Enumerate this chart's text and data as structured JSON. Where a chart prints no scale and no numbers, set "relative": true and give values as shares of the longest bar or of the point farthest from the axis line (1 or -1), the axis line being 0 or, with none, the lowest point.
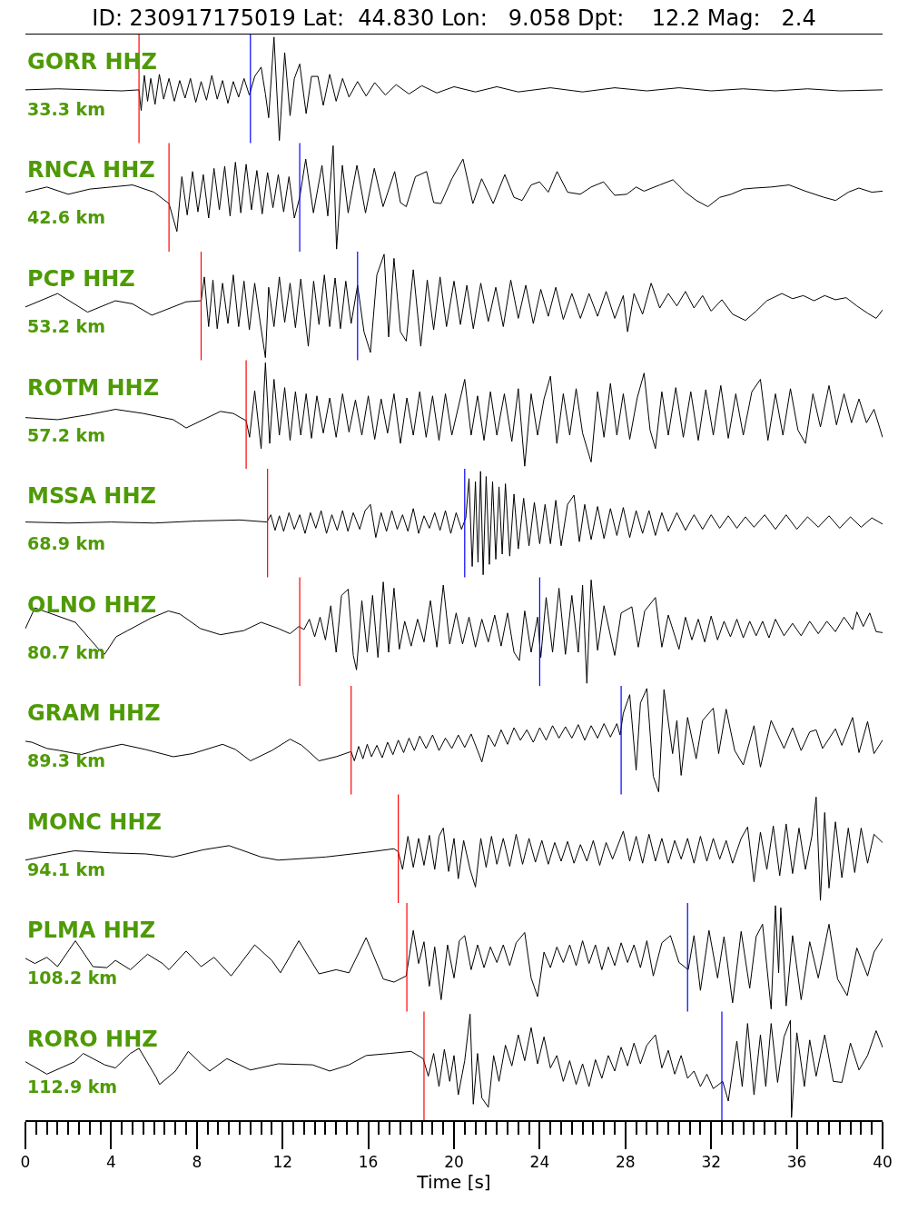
{
  "chart_data": [
    {
      "type": "line",
      "title": "ID: 230917175019 Lat:  44.830 Lon:   9.058 Dpt:    12.2 Mag:   2.4",
      "annotations": [
        "GORR HHZ",
        "33.3 km"
      ],
      "relative": true,
      "xlim": [
        0,
        40
      ],
      "tick_labels": false,
      "color": "#000000",
      "ref_lines": [
        {
          "axis": "x",
          "value": 5.3,
          "color": "#ff0000"
        },
        {
          "axis": "x",
          "value": 10.5,
          "color": "#0000ff"
        }
      ],
      "x": [
        0,
        1.5,
        3,
        4.5,
        5.3,
        5.4,
        5.55,
        5.7,
        5.85,
        6.05,
        6.25,
        6.45,
        6.7,
        6.95,
        7.2,
        7.45,
        7.7,
        7.95,
        8.2,
        8.45,
        8.7,
        8.95,
        9.2,
        9.45,
        9.7,
        9.95,
        10.2,
        10.45,
        10.7,
        11.0,
        11.2,
        11.35,
        11.6,
        11.85,
        12.1,
        12.35,
        12.55,
        12.8,
        13.1,
        13.35,
        13.65,
        13.9,
        14.2,
        14.5,
        14.8,
        15.1,
        15.5,
        15.9,
        16.3,
        16.8,
        17.3,
        17.9,
        18.5,
        19.2,
        20,
        21,
        22,
        23,
        24.5,
        26,
        27.5,
        29,
        30.5,
        32,
        33.5,
        35,
        36.5,
        38,
        40
      ],
      "values": [
        0.49,
        0.5,
        0.49,
        0.48,
        0.49,
        0.29,
        0.63,
        0.38,
        0.6,
        0.35,
        0.64,
        0.4,
        0.6,
        0.38,
        0.58,
        0.41,
        0.6,
        0.37,
        0.57,
        0.39,
        0.63,
        0.4,
        0.58,
        0.36,
        0.57,
        0.42,
        0.6,
        0.44,
        0.62,
        0.71,
        0.45,
        0.22,
        1.0,
        0.0,
        0.85,
        0.24,
        0.6,
        0.74,
        0.26,
        0.62,
        0.62,
        0.34,
        0.64,
        0.38,
        0.6,
        0.42,
        0.57,
        0.43,
        0.56,
        0.44,
        0.54,
        0.45,
        0.53,
        0.46,
        0.52,
        0.47,
        0.52,
        0.47,
        0.51,
        0.47,
        0.51,
        0.48,
        0.51,
        0.48,
        0.5,
        0.48,
        0.5,
        0.48,
        0.49
      ]
    },
    {
      "type": "line",
      "annotations": [
        "RNCA HHZ",
        "42.6 km"
      ],
      "relative": true,
      "xlim": [
        0,
        40
      ],
      "tick_labels": false,
      "color": "#000000",
      "ref_lines": [
        {
          "axis": "x",
          "value": 6.7,
          "color": "#ff0000"
        },
        {
          "axis": "x",
          "value": 12.8,
          "color": "#0000ff"
        }
      ],
      "x": [
        0,
        1,
        2,
        3,
        4,
        5,
        6,
        6.7,
        7.07,
        7.3,
        7.55,
        7.8,
        8.05,
        8.3,
        8.55,
        8.8,
        9.05,
        9.3,
        9.55,
        9.8,
        10.05,
        10.3,
        10.55,
        10.8,
        11.05,
        11.3,
        11.55,
        11.8,
        12.05,
        12.3,
        12.55,
        12.8,
        13.08,
        13.44,
        13.84,
        14.11,
        14.36,
        14.52,
        14.79,
        15.06,
        15.47,
        15.87,
        16.28,
        16.69,
        17.23,
        17.5,
        17.77,
        18.2,
        18.72,
        19.05,
        19.39,
        19.9,
        20.42,
        20.88,
        21.29,
        21.83,
        22.37,
        22.8,
        23.18,
        23.6,
        23.99,
        24.4,
        24.81,
        25.3,
        25.89,
        26.4,
        26.98,
        27.5,
        28.06,
        28.5,
        28.87,
        29.6,
        30.22,
        30.8,
        31.31,
        31.85,
        32.4,
        32.93,
        33.5,
        34.02,
        34.8,
        35.64,
        36.4,
        37.27,
        37.81,
        38.4,
        38.89,
        39.5,
        40
      ],
      "values": [
        0.55,
        0.6,
        0.53,
        0.58,
        0.6,
        0.62,
        0.55,
        0.44,
        0.17,
        0.7,
        0.33,
        0.75,
        0.36,
        0.72,
        0.3,
        0.78,
        0.38,
        0.8,
        0.32,
        0.84,
        0.35,
        0.82,
        0.38,
        0.76,
        0.34,
        0.74,
        0.4,
        0.72,
        0.36,
        0.7,
        0.3,
        0.5,
        0.87,
        0.35,
        0.81,
        0.32,
        1.0,
        0.0,
        0.81,
        0.35,
        0.81,
        0.35,
        0.78,
        0.41,
        0.75,
        0.45,
        0.41,
        0.7,
        0.75,
        0.45,
        0.44,
        0.68,
        0.87,
        0.44,
        0.68,
        0.44,
        0.72,
        0.5,
        0.47,
        0.62,
        0.65,
        0.55,
        0.75,
        0.55,
        0.53,
        0.6,
        0.65,
        0.52,
        0.53,
        0.6,
        0.56,
        0.62,
        0.67,
        0.55,
        0.47,
        0.41,
        0.5,
        0.53,
        0.58,
        0.59,
        0.6,
        0.62,
        0.56,
        0.5,
        0.47,
        0.55,
        0.59,
        0.55,
        0.56
      ]
    },
    {
      "type": "line",
      "annotations": [
        "PCP HHZ",
        "53.2 km"
      ],
      "relative": true,
      "xlim": [
        0,
        40
      ],
      "tick_labels": false,
      "color": "#000000",
      "ref_lines": [
        {
          "axis": "x",
          "value": 8.2,
          "color": "#ff0000"
        },
        {
          "axis": "x",
          "value": 15.5,
          "color": "#0000ff"
        }
      ],
      "x": [
        0,
        1.5,
        2.9,
        4.2,
        5.0,
        5.9,
        7.5,
        8.2,
        8.35,
        8.55,
        8.75,
        8.95,
        9.2,
        9.45,
        9.7,
        9.95,
        10.2,
        10.45,
        10.7,
        10.95,
        11.2,
        11.35,
        11.6,
        11.85,
        12.1,
        12.35,
        12.6,
        12.85,
        13.2,
        13.45,
        13.7,
        13.95,
        14.2,
        14.45,
        14.7,
        14.95,
        15.2,
        15.5,
        15.8,
        16.1,
        16.4,
        16.74,
        16.95,
        17.2,
        17.5,
        17.77,
        18.1,
        18.45,
        18.75,
        19.05,
        19.35,
        19.65,
        20.0,
        20.3,
        20.6,
        20.9,
        21.25,
        21.6,
        21.95,
        22.3,
        22.65,
        23.0,
        23.35,
        23.7,
        24.05,
        24.4,
        24.75,
        25.1,
        25.5,
        25.9,
        26.3,
        26.7,
        27.1,
        27.5,
        27.9,
        28.1,
        28.4,
        28.8,
        29.2,
        29.6,
        30.0,
        30.4,
        30.8,
        31.2,
        31.6,
        32.0,
        32.5,
        33.0,
        33.6,
        34.1,
        34.6,
        35.3,
        35.8,
        36.3,
        36.8,
        37.3,
        37.8,
        38.3,
        38.8,
        39.3,
        39.7,
        40
      ],
      "values": [
        0.49,
        0.62,
        0.44,
        0.55,
        0.52,
        0.41,
        0.54,
        0.55,
        0.78,
        0.3,
        0.75,
        0.28,
        0.72,
        0.33,
        0.8,
        0.3,
        0.74,
        0.27,
        0.72,
        0.35,
        0.0,
        0.68,
        0.3,
        0.78,
        0.34,
        0.72,
        0.29,
        0.76,
        0.11,
        0.74,
        0.32,
        0.8,
        0.3,
        0.77,
        0.28,
        0.74,
        0.33,
        0.7,
        0.25,
        0.05,
        0.8,
        1.0,
        0.2,
        0.96,
        0.25,
        0.16,
        0.85,
        0.11,
        0.75,
        0.27,
        0.78,
        0.3,
        0.74,
        0.32,
        0.7,
        0.28,
        0.72,
        0.35,
        0.68,
        0.3,
        0.75,
        0.38,
        0.7,
        0.33,
        0.66,
        0.4,
        0.68,
        0.37,
        0.62,
        0.38,
        0.62,
        0.4,
        0.64,
        0.38,
        0.6,
        0.25,
        0.62,
        0.42,
        0.72,
        0.48,
        0.62,
        0.5,
        0.64,
        0.48,
        0.6,
        0.45,
        0.56,
        0.42,
        0.36,
        0.45,
        0.55,
        0.62,
        0.57,
        0.6,
        0.55,
        0.6,
        0.56,
        0.58,
        0.5,
        0.43,
        0.38,
        0.46
      ]
    },
    {
      "type": "line",
      "annotations": [
        "ROTM HHZ",
        "57.2 km"
      ],
      "relative": true,
      "xlim": [
        0,
        40
      ],
      "tick_labels": false,
      "color": "#000000",
      "ref_lines": [
        {
          "axis": "x",
          "value": 10.3,
          "color": "#ff0000"
        }
      ],
      "x": [
        0,
        1.5,
        3,
        4.2,
        5.5,
        6.9,
        7.5,
        8.3,
        9.1,
        9.7,
        10.3,
        10.46,
        10.7,
        11.0,
        11.2,
        11.4,
        11.6,
        11.85,
        12.1,
        12.35,
        12.6,
        12.85,
        13.1,
        13.35,
        13.6,
        13.9,
        14.2,
        14.5,
        14.8,
        15.1,
        15.4,
        15.7,
        16.0,
        16.3,
        16.6,
        16.9,
        17.2,
        17.5,
        17.8,
        18.1,
        18.4,
        18.7,
        19.0,
        19.3,
        19.6,
        19.9,
        20.5,
        20.8,
        21.1,
        21.4,
        21.7,
        22.0,
        22.35,
        22.7,
        23.0,
        23.3,
        23.6,
        23.9,
        24.2,
        24.5,
        24.8,
        25.1,
        25.4,
        25.7,
        26.0,
        26.4,
        26.7,
        27.0,
        27.3,
        27.6,
        27.9,
        28.2,
        28.55,
        28.87,
        29.15,
        29.4,
        29.7,
        30.0,
        30.35,
        30.7,
        31.05,
        31.4,
        31.75,
        32.1,
        32.45,
        32.8,
        33.15,
        33.5,
        33.9,
        34.3,
        34.65,
        35.0,
        35.35,
        35.7,
        36.05,
        36.4,
        36.75,
        37.1,
        37.5,
        37.85,
        38.2,
        38.55,
        38.9,
        39.25,
        39.6,
        40
      ],
      "values": [
        0.47,
        0.45,
        0.5,
        0.55,
        0.51,
        0.45,
        0.37,
        0.45,
        0.53,
        0.51,
        0.44,
        0.28,
        0.73,
        0.17,
        1.0,
        0.22,
        0.84,
        0.3,
        0.76,
        0.25,
        0.72,
        0.3,
        0.7,
        0.27,
        0.68,
        0.32,
        0.66,
        0.28,
        0.7,
        0.33,
        0.64,
        0.3,
        0.68,
        0.26,
        0.65,
        0.32,
        0.7,
        0.22,
        0.66,
        0.3,
        0.72,
        0.28,
        0.68,
        0.25,
        0.7,
        0.3,
        0.84,
        0.3,
        0.68,
        0.25,
        0.72,
        0.3,
        0.7,
        0.24,
        0.75,
        0.0,
        0.7,
        0.3,
        0.65,
        0.87,
        0.22,
        0.7,
        0.3,
        0.75,
        0.32,
        0.04,
        0.72,
        0.28,
        0.8,
        0.3,
        0.7,
        0.26,
        0.66,
        0.9,
        0.35,
        0.17,
        0.72,
        0.3,
        0.76,
        0.28,
        0.72,
        0.25,
        0.74,
        0.3,
        0.78,
        0.27,
        0.7,
        0.3,
        0.72,
        0.84,
        0.25,
        0.7,
        0.3,
        0.75,
        0.35,
        0.22,
        0.7,
        0.38,
        0.78,
        0.4,
        0.7,
        0.42,
        0.65,
        0.42,
        0.55,
        0.28
      ]
    },
    {
      "type": "line",
      "annotations": [
        "MSSA HHZ",
        "68.9 km"
      ],
      "relative": true,
      "xlim": [
        0,
        40
      ],
      "tick_labels": false,
      "color": "#000000",
      "ref_lines": [
        {
          "axis": "x",
          "value": 11.3,
          "color": "#ff0000"
        },
        {
          "axis": "x",
          "value": 20.5,
          "color": "#0000ff"
        }
      ],
      "x": [
        0,
        2,
        4,
        6,
        8,
        10,
        11.27,
        11.45,
        11.65,
        11.85,
        12.05,
        12.3,
        12.55,
        12.8,
        13.05,
        13.3,
        13.55,
        13.8,
        14.05,
        14.3,
        14.55,
        14.8,
        15.05,
        15.3,
        15.6,
        15.85,
        16.1,
        16.35,
        16.6,
        16.85,
        17.1,
        17.35,
        17.6,
        17.85,
        18.1,
        18.35,
        18.6,
        18.85,
        19.1,
        19.35,
        19.6,
        19.85,
        20.1,
        20.35,
        20.55,
        20.7,
        20.85,
        21.0,
        21.12,
        21.24,
        21.36,
        21.5,
        21.65,
        21.8,
        21.95,
        22.1,
        22.25,
        22.4,
        22.6,
        22.8,
        23.0,
        23.25,
        23.5,
        23.75,
        24.0,
        24.25,
        24.5,
        24.75,
        25.0,
        25.3,
        25.6,
        25.85,
        26.1,
        26.4,
        26.7,
        27.0,
        27.3,
        27.6,
        27.9,
        28.2,
        28.5,
        28.8,
        29.1,
        29.4,
        29.7,
        30.0,
        30.4,
        30.8,
        31.2,
        31.6,
        32.0,
        32.4,
        32.8,
        33.2,
        33.6,
        34.0,
        34.5,
        35.0,
        35.5,
        36.0,
        36.5,
        37.0,
        37.5,
        38.0,
        38.5,
        39.0,
        39.5,
        40
      ],
      "values": [
        0.51,
        0.5,
        0.51,
        0.5,
        0.52,
        0.53,
        0.51,
        0.58,
        0.43,
        0.57,
        0.42,
        0.6,
        0.44,
        0.58,
        0.4,
        0.6,
        0.45,
        0.62,
        0.4,
        0.58,
        0.43,
        0.62,
        0.42,
        0.6,
        0.44,
        0.62,
        0.68,
        0.36,
        0.6,
        0.42,
        0.62,
        0.44,
        0.58,
        0.42,
        0.64,
        0.4,
        0.57,
        0.45,
        0.6,
        0.43,
        0.62,
        0.4,
        0.6,
        0.44,
        0.55,
        0.93,
        0.08,
        0.9,
        0.12,
        1.0,
        0.0,
        0.95,
        0.1,
        0.9,
        0.15,
        0.85,
        0.2,
        0.88,
        0.18,
        0.78,
        0.25,
        0.74,
        0.28,
        0.7,
        0.3,
        0.68,
        0.3,
        0.72,
        0.28,
        0.68,
        0.77,
        0.32,
        0.68,
        0.34,
        0.66,
        0.35,
        0.64,
        0.38,
        0.65,
        0.36,
        0.62,
        0.4,
        0.62,
        0.38,
        0.6,
        0.42,
        0.6,
        0.43,
        0.58,
        0.44,
        0.58,
        0.45,
        0.57,
        0.45,
        0.56,
        0.46,
        0.58,
        0.44,
        0.58,
        0.44,
        0.56,
        0.46,
        0.57,
        0.45,
        0.56,
        0.46,
        0.55,
        0.49
      ]
    },
    {
      "type": "line",
      "annotations": [
        "OLNO HHZ",
        "80.7 km"
      ],
      "relative": true,
      "xlim": [
        0,
        40
      ],
      "tick_labels": false,
      "color": "#000000",
      "ref_lines": [
        {
          "axis": "x",
          "value": 12.8,
          "color": "#ff0000"
        },
        {
          "axis": "x",
          "value": 24.0,
          "color": "#0000ff"
        }
      ],
      "x": [
        0,
        0.44,
        1.52,
        2.33,
        3.42,
        3.69,
        4.23,
        4.77,
        5.85,
        6.67,
        7.21,
        8.16,
        9.1,
        10.19,
        11.0,
        11.81,
        12.35,
        12.76,
        13.0,
        13.25,
        13.5,
        13.75,
        14.0,
        14.25,
        14.5,
        14.75,
        15.06,
        15.3,
        15.45,
        15.7,
        15.95,
        16.2,
        16.45,
        16.7,
        16.95,
        17.2,
        17.45,
        17.7,
        18.0,
        18.3,
        18.6,
        18.9,
        19.2,
        19.5,
        19.8,
        20.1,
        20.4,
        20.7,
        21.0,
        21.3,
        21.6,
        21.9,
        22.2,
        22.5,
        22.8,
        23.05,
        23.3,
        23.6,
        23.9,
        24.05,
        24.3,
        24.6,
        24.9,
        25.2,
        25.5,
        25.8,
        26.0,
        26.2,
        26.4,
        26.7,
        27.0,
        27.5,
        27.8,
        28.3,
        28.6,
        28.9,
        29.4,
        29.7,
        30.0,
        30.5,
        30.8,
        31.1,
        31.4,
        31.7,
        32.0,
        32.3,
        32.6,
        32.9,
        33.2,
        33.5,
        33.8,
        34.1,
        34.4,
        34.7,
        35.0,
        35.4,
        35.8,
        36.2,
        36.6,
        37.0,
        37.4,
        37.8,
        38.2,
        38.6,
        38.8,
        39.1,
        39.4,
        39.7,
        40
      ],
      "values": [
        0.53,
        0.73,
        0.65,
        0.59,
        0.33,
        0.28,
        0.45,
        0.51,
        0.63,
        0.7,
        0.67,
        0.53,
        0.47,
        0.51,
        0.59,
        0.53,
        0.48,
        0.55,
        0.52,
        0.62,
        0.45,
        0.64,
        0.42,
        0.75,
        0.3,
        0.85,
        0.91,
        0.27,
        0.13,
        0.8,
        0.3,
        0.85,
        0.25,
        0.98,
        0.3,
        0.92,
        0.33,
        0.6,
        0.36,
        0.62,
        0.4,
        0.8,
        0.35,
        0.95,
        0.38,
        0.68,
        0.38,
        0.64,
        0.35,
        0.62,
        0.4,
        0.66,
        0.36,
        0.68,
        0.3,
        0.22,
        0.7,
        0.3,
        0.64,
        0.25,
        0.83,
        0.3,
        0.92,
        0.28,
        0.85,
        0.3,
        0.95,
        0.0,
        1.0,
        0.32,
        0.75,
        0.27,
        0.68,
        0.74,
        0.35,
        0.7,
        0.83,
        0.35,
        0.66,
        0.33,
        0.64,
        0.42,
        0.62,
        0.4,
        0.65,
        0.42,
        0.6,
        0.45,
        0.62,
        0.44,
        0.6,
        0.46,
        0.6,
        0.44,
        0.62,
        0.46,
        0.58,
        0.46,
        0.6,
        0.48,
        0.6,
        0.5,
        0.64,
        0.52,
        0.69,
        0.55,
        0.68,
        0.5,
        0.49
      ]
    },
    {
      "type": "line",
      "annotations": [
        "GRAM HHZ",
        "89.3 km"
      ],
      "relative": true,
      "xlim": [
        0,
        40
      ],
      "tick_labels": false,
      "color": "#000000",
      "ref_lines": [
        {
          "axis": "x",
          "value": 15.2,
          "color": "#ff0000"
        },
        {
          "axis": "x",
          "value": 27.8,
          "color": "#0000ff"
        }
      ],
      "x": [
        0,
        0.3,
        1.0,
        1.6,
        2.6,
        3.4,
        4.5,
        5.6,
        6.9,
        7.8,
        9.2,
        9.8,
        10.5,
        11.5,
        12.35,
        12.9,
        13.7,
        14.5,
        15.2,
        15.35,
        15.55,
        15.75,
        15.95,
        16.15,
        16.4,
        16.65,
        16.9,
        17.15,
        17.4,
        17.65,
        17.9,
        18.15,
        18.4,
        18.7,
        19.0,
        19.3,
        19.6,
        19.9,
        20.2,
        20.5,
        20.8,
        21.1,
        21.3,
        21.6,
        21.9,
        22.2,
        22.5,
        22.8,
        23.1,
        23.4,
        23.7,
        24.0,
        24.3,
        24.6,
        24.9,
        25.2,
        25.5,
        25.8,
        26.1,
        26.4,
        26.7,
        27.0,
        27.3,
        27.6,
        27.75,
        27.9,
        28.2,
        28.5,
        28.7,
        29.0,
        29.3,
        29.55,
        29.8,
        30.2,
        30.4,
        30.6,
        30.9,
        31.3,
        31.6,
        32.1,
        32.35,
        32.7,
        33.1,
        33.5,
        34.0,
        34.3,
        34.8,
        35.4,
        35.8,
        36.2,
        36.6,
        36.9,
        37.2,
        37.8,
        38.1,
        38.6,
        38.9,
        39.3,
        39.6,
        40
      ],
      "values": [
        0.49,
        0.48,
        0.42,
        0.4,
        0.36,
        0.41,
        0.46,
        0.41,
        0.34,
        0.37,
        0.46,
        0.41,
        0.3,
        0.4,
        0.51,
        0.45,
        0.3,
        0.34,
        0.39,
        0.3,
        0.44,
        0.32,
        0.46,
        0.34,
        0.45,
        0.33,
        0.48,
        0.36,
        0.5,
        0.38,
        0.52,
        0.4,
        0.54,
        0.42,
        0.55,
        0.4,
        0.52,
        0.42,
        0.55,
        0.43,
        0.56,
        0.4,
        0.29,
        0.55,
        0.44,
        0.6,
        0.46,
        0.62,
        0.5,
        0.6,
        0.48,
        0.62,
        0.5,
        0.64,
        0.52,
        0.63,
        0.52,
        0.65,
        0.5,
        0.64,
        0.52,
        0.66,
        0.53,
        0.66,
        0.55,
        0.76,
        0.94,
        0.21,
        0.86,
        1.0,
        0.15,
        0.0,
        0.99,
        0.37,
        0.69,
        0.16,
        0.72,
        0.32,
        0.69,
        0.81,
        0.37,
        0.8,
        0.4,
        0.26,
        0.64,
        0.24,
        0.69,
        0.42,
        0.62,
        0.4,
        0.58,
        0.6,
        0.42,
        0.61,
        0.45,
        0.72,
        0.38,
        0.68,
        0.37,
        0.5
      ]
    },
    {
      "type": "line",
      "annotations": [
        "MONC HHZ",
        "94.1 km"
      ],
      "relative": true,
      "xlim": [
        0,
        40
      ],
      "tick_labels": false,
      "color": "#000000",
      "ref_lines": [
        {
          "axis": "x",
          "value": 17.4,
          "color": "#ff0000"
        }
      ],
      "x": [
        0,
        1.2,
        2.3,
        4.0,
        5.6,
        6.9,
        8.3,
        9.5,
        11.0,
        11.8,
        14.0,
        16.1,
        17.2,
        17.4,
        17.6,
        17.85,
        18.1,
        18.35,
        18.6,
        18.85,
        19.1,
        19.3,
        19.5,
        19.75,
        20.0,
        20.2,
        20.45,
        20.75,
        21.0,
        21.25,
        21.5,
        21.75,
        22.0,
        22.3,
        22.6,
        22.9,
        23.2,
        23.5,
        23.8,
        24.1,
        24.4,
        24.7,
        25.0,
        25.3,
        25.6,
        25.9,
        26.2,
        26.5,
        26.8,
        27.1,
        27.4,
        27.9,
        28.2,
        28.5,
        28.8,
        29.1,
        29.4,
        29.7,
        30.0,
        30.3,
        30.6,
        30.9,
        31.2,
        31.5,
        31.8,
        32.1,
        32.4,
        32.7,
        33.0,
        33.4,
        33.7,
        34.0,
        34.3,
        34.6,
        34.9,
        35.2,
        35.5,
        35.8,
        36.1,
        36.4,
        36.7,
        36.9,
        37.1,
        37.3,
        37.5,
        37.8,
        38.1,
        38.4,
        38.7,
        39.0,
        39.3,
        39.6,
        40
      ],
      "values": [
        0.39,
        0.44,
        0.48,
        0.46,
        0.45,
        0.42,
        0.49,
        0.53,
        0.42,
        0.39,
        0.42,
        0.47,
        0.5,
        0.47,
        0.3,
        0.62,
        0.32,
        0.6,
        0.34,
        0.63,
        0.3,
        0.62,
        0.7,
        0.28,
        0.6,
        0.21,
        0.58,
        0.3,
        0.13,
        0.6,
        0.32,
        0.62,
        0.35,
        0.6,
        0.33,
        0.64,
        0.35,
        0.6,
        0.37,
        0.58,
        0.35,
        0.56,
        0.38,
        0.57,
        0.36,
        0.54,
        0.38,
        0.58,
        0.34,
        0.56,
        0.4,
        0.67,
        0.38,
        0.62,
        0.36,
        0.64,
        0.38,
        0.6,
        0.36,
        0.58,
        0.4,
        0.6,
        0.36,
        0.62,
        0.38,
        0.6,
        0.4,
        0.58,
        0.36,
        0.6,
        0.71,
        0.18,
        0.66,
        0.3,
        0.72,
        0.24,
        0.74,
        0.26,
        0.7,
        0.3,
        0.62,
        1.0,
        0.0,
        0.85,
        0.12,
        0.76,
        0.22,
        0.7,
        0.27,
        0.7,
        0.36,
        0.64,
        0.56
      ]
    },
    {
      "type": "line",
      "annotations": [
        "PLMA HHZ",
        "108.2 km"
      ],
      "relative": true,
      "xlim": [
        0,
        40
      ],
      "tick_labels": false,
      "color": "#000000",
      "ref_lines": [
        {
          "axis": "x",
          "value": 17.8,
          "color": "#ff0000"
        },
        {
          "axis": "x",
          "value": 30.9,
          "color": "#0000ff"
        }
      ],
      "x": [
        0,
        0.44,
        1.0,
        1.5,
        2.33,
        3.15,
        3.8,
        4.2,
        4.9,
        5.7,
        6.4,
        6.7,
        7.5,
        8.2,
        8.8,
        9.6,
        10.7,
        11.5,
        11.9,
        12.76,
        13.7,
        14.5,
        15.1,
        15.9,
        16.7,
        17.2,
        17.77,
        18.1,
        18.35,
        18.6,
        18.85,
        19.1,
        19.4,
        19.7,
        20.0,
        20.25,
        20.5,
        20.8,
        21.1,
        21.4,
        21.7,
        22.0,
        22.3,
        22.6,
        22.9,
        23.3,
        23.6,
        23.9,
        24.2,
        24.5,
        24.8,
        25.1,
        25.4,
        25.7,
        26.0,
        26.3,
        26.6,
        26.9,
        27.2,
        27.5,
        27.8,
        28.1,
        28.4,
        28.7,
        29.0,
        29.3,
        29.7,
        30.1,
        30.5,
        30.93,
        31.2,
        31.5,
        31.9,
        32.3,
        32.6,
        33.0,
        33.4,
        33.8,
        34.1,
        34.4,
        34.8,
        35.0,
        35.15,
        35.25,
        35.5,
        35.8,
        36.2,
        36.6,
        37.0,
        37.5,
        37.9,
        38.35,
        38.8,
        39.3,
        39.6,
        40
      ],
      "values": [
        0.49,
        0.44,
        0.5,
        0.41,
        0.66,
        0.41,
        0.4,
        0.47,
        0.38,
        0.53,
        0.44,
        0.38,
        0.56,
        0.41,
        0.5,
        0.32,
        0.62,
        0.47,
        0.35,
        0.66,
        0.34,
        0.38,
        0.35,
        0.69,
        0.29,
        0.26,
        0.32,
        0.76,
        0.44,
        0.65,
        0.22,
        0.6,
        0.09,
        0.62,
        0.3,
        0.66,
        0.71,
        0.38,
        0.62,
        0.4,
        0.6,
        0.45,
        0.62,
        0.42,
        0.64,
        0.74,
        0.3,
        0.12,
        0.55,
        0.4,
        0.6,
        0.45,
        0.62,
        0.42,
        0.66,
        0.44,
        0.62,
        0.38,
        0.6,
        0.42,
        0.64,
        0.45,
        0.62,
        0.4,
        0.66,
        0.32,
        0.64,
        0.71,
        0.45,
        0.38,
        0.71,
        0.18,
        0.76,
        0.3,
        0.7,
        0.06,
        0.75,
        0.2,
        0.7,
        0.82,
        0.0,
        1.0,
        0.35,
        0.98,
        0.03,
        0.71,
        0.09,
        0.65,
        0.3,
        0.82,
        0.29,
        0.13,
        0.59,
        0.32,
        0.55,
        0.68
      ]
    },
    {
      "type": "line",
      "annotations": [
        "RORO HHZ",
        "112.9 km"
      ],
      "relative": true,
      "xlim": [
        0,
        40
      ],
      "tick_labels": "x",
      "color": "#000000",
      "xlabel": "Time [s]",
      "xticks": [
        0,
        {
          "value": 0.5,
          "label": null
        },
        {
          "value": 1,
          "label": null
        },
        {
          "value": 1.5,
          "label": null
        },
        {
          "value": 2,
          "label": null
        },
        {
          "value": 2.5,
          "label": null
        },
        {
          "value": 3,
          "label": null
        },
        {
          "value": 3.5,
          "label": null
        },
        4,
        {
          "value": 4.5,
          "label": null
        },
        {
          "value": 5,
          "label": null
        },
        {
          "value": 5.5,
          "label": null
        },
        {
          "value": 6,
          "label": null
        },
        {
          "value": 6.5,
          "label": null
        },
        {
          "value": 7,
          "label": null
        },
        {
          "value": 7.5,
          "label": null
        },
        8,
        {
          "value": 8.5,
          "label": null
        },
        {
          "value": 9,
          "label": null
        },
        {
          "value": 9.5,
          "label": null
        },
        {
          "value": 10,
          "label": null
        },
        {
          "value": 10.5,
          "label": null
        },
        {
          "value": 11,
          "label": null
        },
        {
          "value": 11.5,
          "label": null
        },
        12,
        {
          "value": 12.5,
          "label": null
        },
        {
          "value": 13,
          "label": null
        },
        {
          "value": 13.5,
          "label": null
        },
        {
          "value": 14,
          "label": null
        },
        {
          "value": 14.5,
          "label": null
        },
        {
          "value": 15,
          "label": null
        },
        {
          "value": 15.5,
          "label": null
        },
        16,
        {
          "value": 16.5,
          "label": null
        },
        {
          "value": 17,
          "label": null
        },
        {
          "value": 17.5,
          "label": null
        },
        {
          "value": 18,
          "label": null
        },
        {
          "value": 18.5,
          "label": null
        },
        {
          "value": 19,
          "label": null
        },
        {
          "value": 19.5,
          "label": null
        },
        20,
        {
          "value": 20.5,
          "label": null
        },
        {
          "value": 21,
          "label": null
        },
        {
          "value": 21.5,
          "label": null
        },
        {
          "value": 22,
          "label": null
        },
        {
          "value": 22.5,
          "label": null
        },
        {
          "value": 23,
          "label": null
        },
        {
          "value": 23.5,
          "label": null
        },
        24,
        {
          "value": 24.5,
          "label": null
        },
        {
          "value": 25,
          "label": null
        },
        {
          "value": 25.5,
          "label": null
        },
        {
          "value": 26,
          "label": null
        },
        {
          "value": 26.5,
          "label": null
        },
        {
          "value": 27,
          "label": null
        },
        {
          "value": 27.5,
          "label": null
        },
        28,
        {
          "value": 28.5,
          "label": null
        },
        {
          "value": 29,
          "label": null
        },
        {
          "value": 29.5,
          "label": null
        },
        {
          "value": 30,
          "label": null
        },
        {
          "value": 30.5,
          "label": null
        },
        {
          "value": 31,
          "label": null
        },
        {
          "value": 31.5,
          "label": null
        },
        32,
        {
          "value": 32.5,
          "label": null
        },
        {
          "value": 33,
          "label": null
        },
        {
          "value": 33.5,
          "label": null
        },
        {
          "value": 34,
          "label": null
        },
        {
          "value": 34.5,
          "label": null
        },
        {
          "value": 35,
          "label": null
        },
        {
          "value": 35.5,
          "label": null
        },
        36,
        {
          "value": 36.5,
          "label": null
        },
        {
          "value": 37,
          "label": null
        },
        {
          "value": 37.5,
          "label": null
        },
        {
          "value": 38,
          "label": null
        },
        {
          "value": 38.5,
          "label": null
        },
        {
          "value": 39,
          "label": null
        },
        {
          "value": 39.5,
          "label": null
        },
        40
      ],
      "ref_lines": [
        {
          "axis": "x",
          "value": 18.6,
          "color": "#ff0000"
        },
        {
          "axis": "x",
          "value": 32.5,
          "color": "#0000ff"
        }
      ],
      "x": [
        0,
        1.0,
        2.3,
        2.7,
        3.7,
        4.2,
        4.9,
        5.3,
        6.1,
        6.26,
        7.0,
        7.6,
        8.2,
        8.6,
        9.4,
        10.5,
        11.8,
        13.4,
        14.2,
        15.1,
        15.9,
        17.0,
        18.0,
        18.56,
        18.8,
        19.05,
        19.3,
        19.55,
        19.8,
        20.0,
        20.2,
        20.5,
        20.75,
        20.9,
        21.1,
        21.3,
        21.6,
        21.85,
        22.1,
        22.4,
        22.7,
        23.0,
        23.3,
        23.6,
        23.9,
        24.2,
        24.5,
        24.8,
        25.1,
        25.4,
        25.7,
        26.0,
        26.3,
        26.6,
        26.9,
        27.2,
        27.5,
        27.8,
        28.1,
        28.4,
        28.7,
        29.0,
        29.4,
        29.7,
        30.0,
        30.3,
        30.6,
        30.9,
        31.2,
        31.5,
        31.8,
        32.1,
        32.54,
        32.8,
        33.2,
        33.45,
        33.7,
        34.0,
        34.3,
        34.55,
        34.8,
        35.1,
        35.4,
        35.7,
        35.75,
        36.0,
        36.35,
        36.6,
        36.9,
        37.3,
        37.7,
        38.1,
        38.5,
        38.9,
        39.3,
        39.7,
        40
      ],
      "values": [
        0.54,
        0.42,
        0.54,
        0.62,
        0.51,
        0.48,
        0.62,
        0.67,
        0.39,
        0.32,
        0.45,
        0.64,
        0.52,
        0.45,
        0.57,
        0.46,
        0.52,
        0.51,
        0.45,
        0.51,
        0.6,
        0.62,
        0.64,
        0.57,
        0.4,
        0.62,
        0.3,
        0.66,
        0.35,
        0.6,
        0.22,
        0.55,
        1.0,
        0.13,
        0.62,
        0.19,
        0.1,
        0.6,
        0.35,
        0.7,
        0.5,
        0.8,
        0.55,
        0.87,
        0.52,
        0.78,
        0.48,
        0.6,
        0.35,
        0.55,
        0.32,
        0.52,
        0.3,
        0.56,
        0.38,
        0.6,
        0.45,
        0.68,
        0.5,
        0.72,
        0.52,
        0.7,
        0.8,
        0.48,
        0.65,
        0.42,
        0.6,
        0.38,
        0.45,
        0.3,
        0.42,
        0.28,
        0.35,
        0.16,
        0.74,
        0.3,
        0.91,
        0.22,
        0.8,
        0.3,
        0.91,
        0.34,
        0.78,
        0.94,
        0.0,
        0.82,
        0.3,
        0.75,
        0.4,
        0.8,
        0.35,
        0.34,
        0.72,
        0.46,
        0.6,
        0.84,
        0.68
      ]
    }
  ]
}
